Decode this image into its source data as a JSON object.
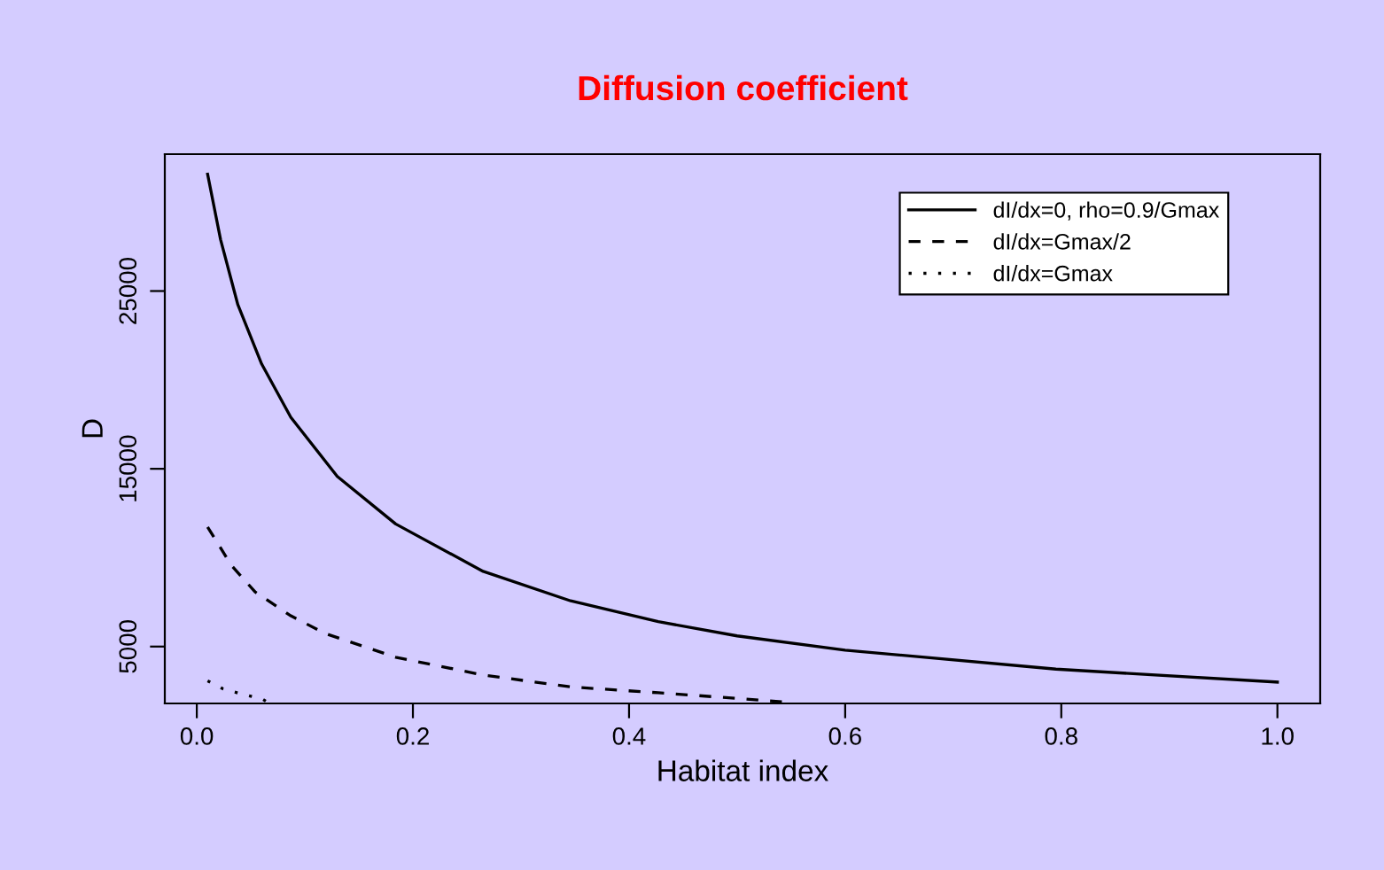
{
  "chart_data": {
    "type": "line",
    "title": "Diffusion coefficient",
    "xlabel": "Habitat index",
    "ylabel": "D",
    "xlim": [
      -0.0296,
      1.0396
    ],
    "ylim": [
      1800,
      32700
    ],
    "xticks": [
      {
        "value": 0,
        "label": "0.0"
      },
      {
        "value": 0.2,
        "label": "0.2"
      },
      {
        "value": 0.4,
        "label": "0.4"
      },
      {
        "value": 0.6,
        "label": "0.6"
      },
      {
        "value": 0.8,
        "label": "0.8"
      },
      {
        "value": 1,
        "label": "1.0"
      }
    ],
    "yticks": [
      5000,
      15000,
      25000
    ],
    "grid": false,
    "legend": "top right",
    "marker": "none",
    "series": [
      {
        "name": "dI/dx=0, rho=0.9/Gmax",
        "color": "#000000",
        "line_style": "solid",
        "x": [
          0.01,
          0.022,
          0.038,
          0.06,
          0.087,
          0.13,
          0.184,
          0.265,
          0.346,
          0.427,
          0.5,
          0.6,
          0.795,
          1.0
        ],
        "values": [
          31570,
          27900,
          24230,
          20900,
          17900,
          14570,
          11900,
          9230,
          7570,
          6400,
          5600,
          4800,
          3730,
          3000
        ]
      },
      {
        "name": "dI/dx=Gmax/2",
        "color": "#000000",
        "line_style": "dashed",
        "x": [
          0.01,
          0.032,
          0.054,
          0.087,
          0.119,
          0.184,
          0.265,
          0.346,
          0.427,
          0.503,
          0.55
        ],
        "values": [
          11730,
          9570,
          8070,
          6730,
          5730,
          4400,
          3400,
          2730,
          2400,
          2070,
          1850
        ]
      },
      {
        "name": "dI/dx=Gmax",
        "color": "#000000",
        "line_style": "dotted",
        "x": [
          0.01,
          0.024,
          0.043,
          0.06,
          0.066
        ],
        "values": [
          3070,
          2630,
          2300,
          2070,
          1850
        ]
      }
    ]
  }
}
